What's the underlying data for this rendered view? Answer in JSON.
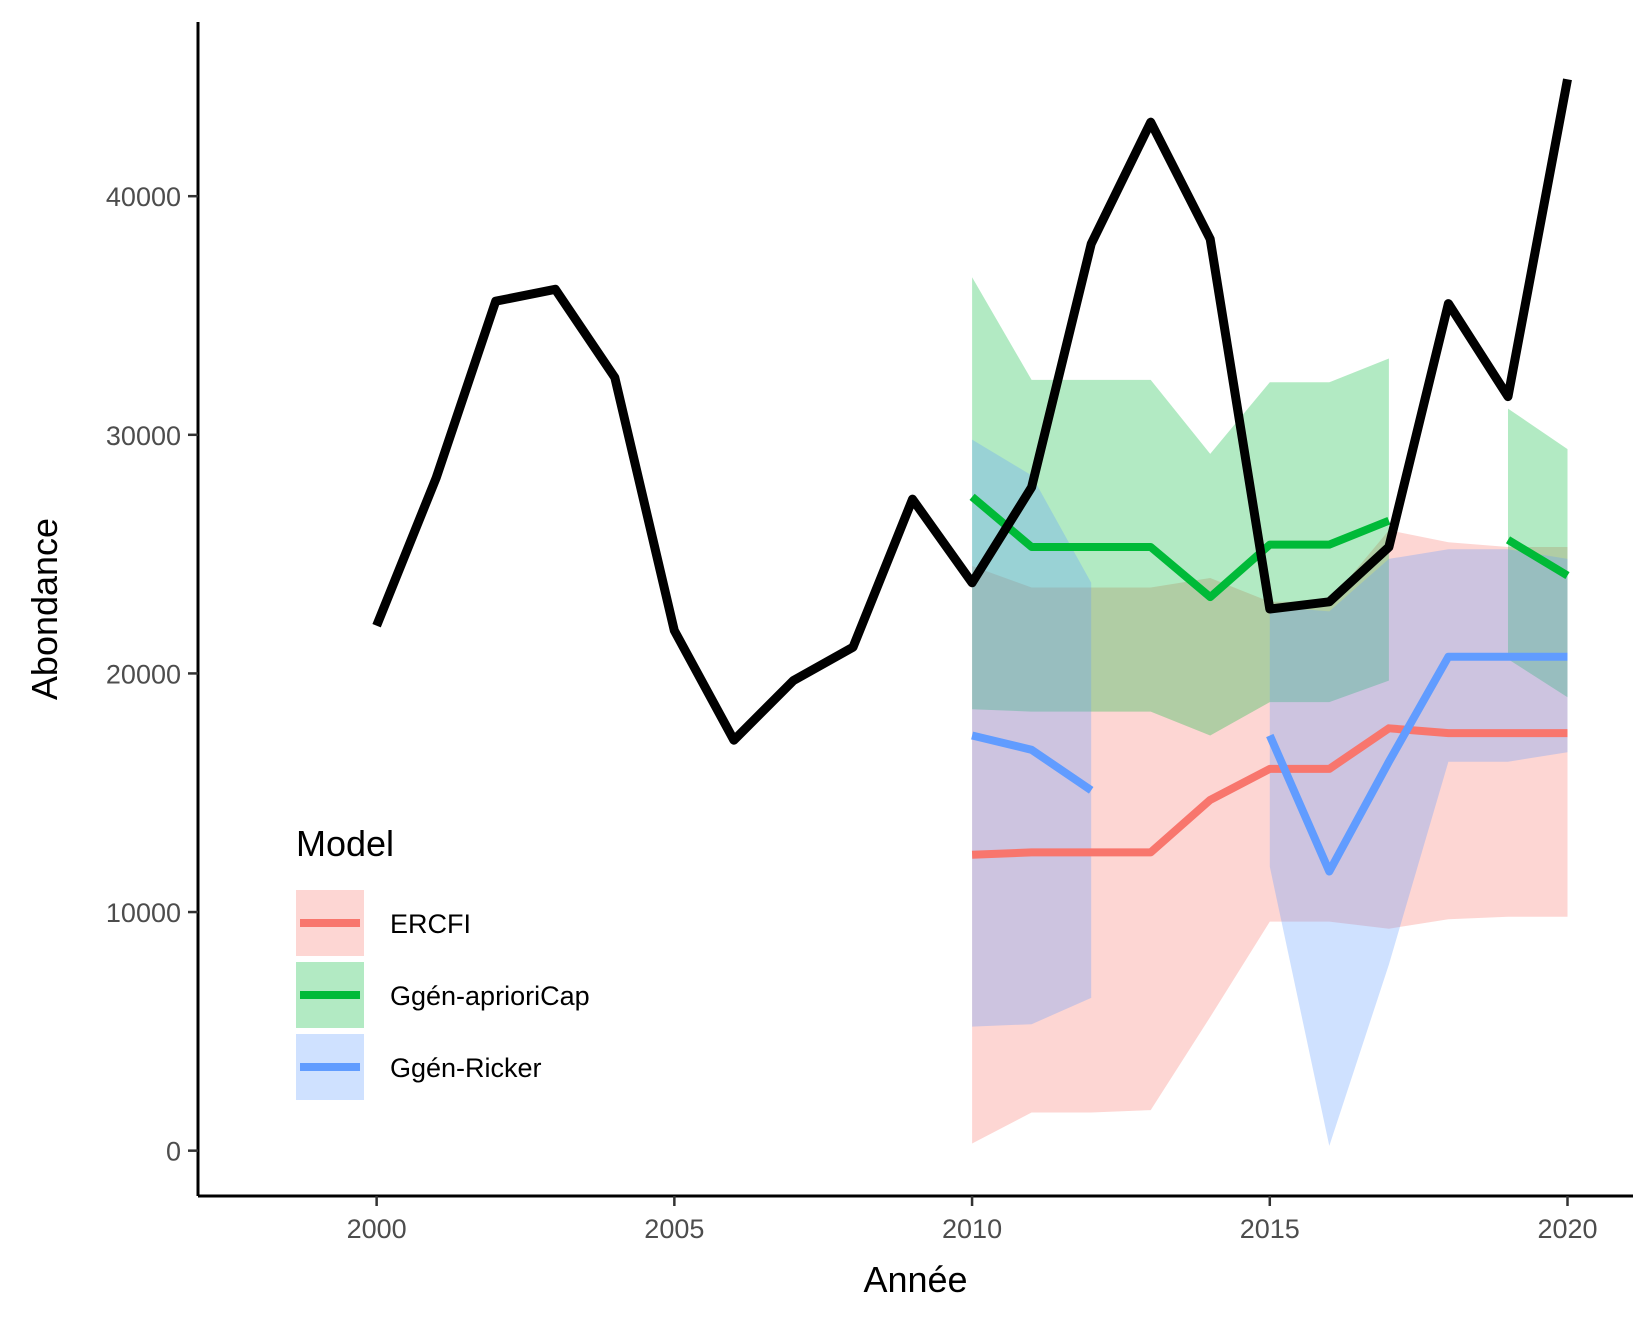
{
  "chart_data": {
    "type": "line",
    "xlabel": "Année",
    "ylabel": "Abondance",
    "xlim": [
      1997,
      2021.1
    ],
    "ylim": [
      -1900,
      47300
    ],
    "xticks": [
      2000,
      2005,
      2010,
      2015,
      2020
    ],
    "yticks": [
      0,
      10000,
      20000,
      30000,
      40000
    ],
    "ytick_labels": [
      "0",
      "10000",
      "20000",
      "30000",
      "40000"
    ],
    "grid": false,
    "observed": {
      "color": "#000000",
      "x": [
        2000,
        2001,
        2002,
        2003,
        2004,
        2005,
        2006,
        2007,
        2008,
        2009,
        2010,
        2011,
        2012,
        2013,
        2014,
        2015,
        2016,
        2017,
        2018,
        2019,
        2020
      ],
      "y": [
        22000,
        28200,
        35600,
        36100,
        32400,
        21800,
        17200,
        19700,
        21100,
        27300,
        23800,
        27800,
        38000,
        43100,
        38200,
        22700,
        23000,
        25300,
        35500,
        31600,
        44900
      ]
    },
    "legend": {
      "title": "Model",
      "position": "bottom-left",
      "entries": [
        "ERCFI",
        "Ggén-aprioriCap",
        "Ggén-Ricker"
      ]
    },
    "series": [
      {
        "name": "ERCFI",
        "color": "#F8766D",
        "ribbon_color": "#F8766D",
        "x": [
          2010,
          2011,
          2012,
          2013,
          2014,
          2015,
          2016,
          2017,
          2018,
          2019,
          2020
        ],
        "y": [
          12400,
          12500,
          12500,
          12500,
          14700,
          16000,
          16000,
          17700,
          17500,
          17500,
          17500
        ],
        "lower": [
          300,
          1600,
          1600,
          1700,
          5600,
          9600,
          9600,
          9300,
          9700,
          9800,
          9800
        ],
        "upper": [
          24500,
          23600,
          23600,
          23600,
          24000,
          23000,
          23000,
          26000,
          25500,
          25300,
          25300
        ]
      },
      {
        "name": "Ggén-aprioriCap",
        "color": "#00BA38",
        "ribbon_color": "#00BA38",
        "segments": [
          {
            "x": [
              2010,
              2011,
              2012,
              2013,
              2014,
              2015,
              2016,
              2017
            ],
            "y": [
              27400,
              25300,
              25300,
              25300,
              23200,
              25400,
              25400,
              26400
            ],
            "lower": [
              18500,
              18400,
              18400,
              18400,
              17400,
              18800,
              18800,
              19700
            ],
            "upper": [
              36600,
              32300,
              32300,
              32300,
              29200,
              32200,
              32200,
              33200
            ]
          },
          {
            "x": [
              2019,
              2020
            ],
            "y": [
              25600,
              24100
            ],
            "lower": [
              20600,
              19000
            ],
            "upper": [
              31100,
              29400
            ]
          }
        ]
      },
      {
        "name": "Ggén-Ricker",
        "color": "#619CFF",
        "ribbon_color": "#619CFF",
        "segments": [
          {
            "x": [
              2010,
              2011,
              2012
            ],
            "y": [
              17400,
              16800,
              15100
            ],
            "lower": [
              5200,
              5300,
              6400
            ],
            "upper": [
              29800,
              28300,
              23800
            ]
          },
          {
            "x": [
              2015,
              2016,
              2017,
              2018,
              2019,
              2020
            ],
            "y": [
              17400,
              11700,
              16300,
              20700,
              20700,
              20700
            ],
            "lower": [
              11900,
              200,
              7800,
              16300,
              16300,
              16700
            ],
            "upper": [
              22800,
              22600,
              24800,
              25200,
              25200,
              24800
            ]
          }
        ]
      }
    ]
  }
}
